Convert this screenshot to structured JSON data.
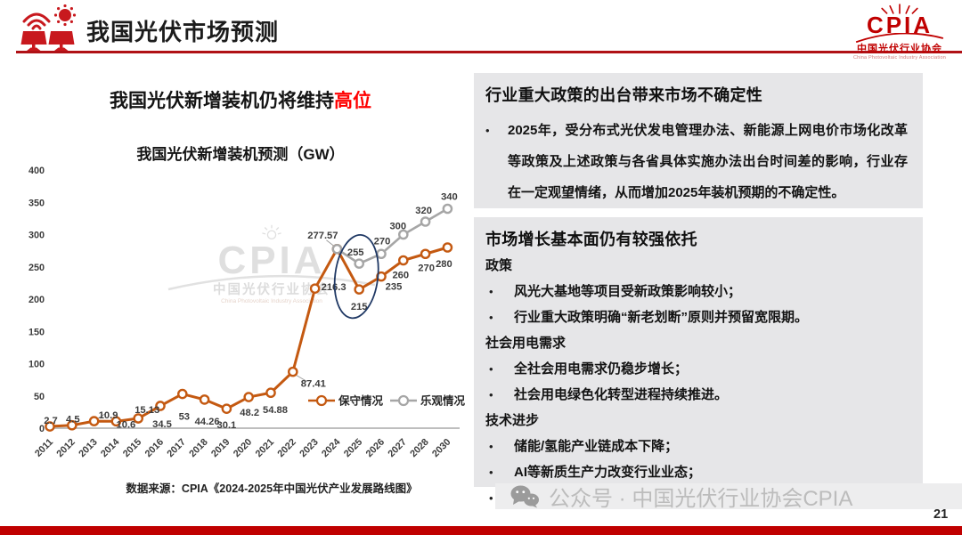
{
  "header": {
    "title": "我国光伏市场预测",
    "logo": {
      "brand": "CPIA",
      "org": "中国光伏行业协会",
      "org_en": "China Photovoltaic Industry Association"
    }
  },
  "left": {
    "headline_normal": "我国光伏新增装机仍将维持",
    "headline_highlight": "高位",
    "chart_title": "我国光伏新增装机预测（GW）",
    "source_note": "数据来源：CPIA《2024-2025年中国光伏产业发展路线图》",
    "watermark": {
      "brand": "CPIA",
      "org": "中国光伏行业协会",
      "org_en": "China Photovoltaic Industry Association"
    }
  },
  "chart_data": {
    "type": "line",
    "title": "我国光伏新增装机预测（GW）",
    "categories": [
      "2011",
      "2012",
      "2013",
      "2014",
      "2015",
      "2016",
      "2017",
      "2018",
      "2019",
      "2020",
      "2021",
      "2022",
      "2023",
      "2024",
      "2025",
      "2026",
      "2027",
      "2028",
      "2030"
    ],
    "series": [
      {
        "name": "保守情况",
        "color": "#C45911",
        "start_index": 0,
        "values": [
          2.7,
          4.5,
          10.9,
          10.6,
          15.13,
          34.5,
          53,
          44.26,
          30.1,
          48.2,
          54.88,
          87.41,
          216.3,
          277.57,
          215,
          235,
          260,
          270,
          280
        ],
        "labels": [
          "2.7",
          "4.5",
          "10.9",
          "10.6",
          "15.13",
          "34.5",
          "53",
          "44.26",
          "30.1",
          "48.2",
          "54.88",
          "87.41",
          "216.3",
          "277.57",
          "215",
          "235",
          "260",
          "270",
          "280"
        ]
      },
      {
        "name": "乐观情况",
        "color": "#A6A6A6",
        "start_index": 13,
        "values": [
          277.57,
          255,
          270,
          300,
          320,
          340
        ],
        "labels": [
          "",
          "255",
          "270",
          "300",
          "320",
          "340"
        ]
      }
    ],
    "ylim": [
      0,
      400
    ],
    "ytick_step": 50,
    "grid": false,
    "legend": [
      "保守情况",
      "乐观情况"
    ],
    "legend_position": "inside-bottom-right",
    "annotation": {
      "shape": "ellipse",
      "target": "2025 forecast points 255 / 215",
      "color": "#1F3864"
    }
  },
  "panels": [
    {
      "title": "行业重大政策的出台带来市场不确定性",
      "bullets": [
        "2025年，受分布式光伏发电管理办法、新能源上网电价市场化改革等政策及上述政策与各省具体实施办法出台时间差的影响，行业存在一定观望情绪，从而增加2025年装机预期的不确定性。"
      ]
    },
    {
      "title": "市场增长基本面仍有较强依托",
      "sections": [
        {
          "heading": "政策",
          "bullets": [
            "风光大基地等项目受新政策影响较小；",
            "行业重大政策明确“新老划断”原则并预留宽限期。"
          ]
        },
        {
          "heading": "社会用电需求",
          "bullets": [
            "全社会用电需求仍稳步增长；",
            "社会用电绿色化转型进程持续推进。"
          ]
        },
        {
          "heading": "技术进步",
          "bullets": [
            "储能/氢能产业链成本下降；",
            "AI等新质生产力改变行业业态；",
            "光伏产业链技术持续进步，推动行业挖掘更多应用场景。"
          ]
        }
      ]
    }
  ],
  "footer": {
    "wechat_watermark": "公众号 · 中国光伏行业协会CPIA",
    "page_number": "21"
  },
  "colors": {
    "accent_red": "#C00000",
    "underline_red": "#B01116",
    "highlight_red": "#FF0000",
    "conservative_orange": "#C45911",
    "optimistic_gray": "#A6A6A6",
    "ellipse_navy": "#1F3864",
    "panel_bg": "#E6E6E8"
  }
}
